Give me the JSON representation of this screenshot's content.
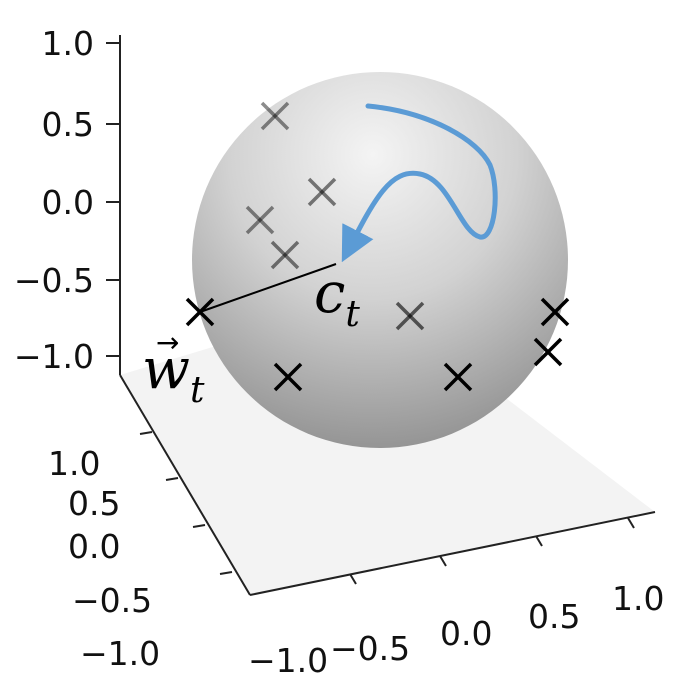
{
  "chart_data": {
    "type": "scatter",
    "projection": "3d",
    "title": "",
    "surface": "unit sphere (gray shaded)",
    "z_ticks": [
      "1.0",
      "0.5",
      "0.0",
      "−0.5",
      "−1.0"
    ],
    "y_ticks": [
      "1.0",
      "0.5",
      "0.0",
      "−0.5",
      "−1.0"
    ],
    "x_ticks": [
      "−1.0",
      "−0.5",
      "0.0",
      "0.5",
      "1.0"
    ],
    "xlim": [
      -1,
      1
    ],
    "ylim": [
      -1,
      1
    ],
    "zlim": [
      -1,
      1
    ],
    "markers": "x",
    "points_on_sphere": 12,
    "point_color": "#000000",
    "path_color": "#5b9bd5",
    "annotations": {
      "centroid_label": "c",
      "centroid_subscript": "t",
      "vector_label": "w",
      "vector_subscript": "t",
      "vector_arrow": "→"
    }
  },
  "colors": {
    "sphere_light": "#f2f2f2",
    "sphere_dark": "#8f8f8f",
    "floor": "#f3f3f3",
    "axis": "#222222",
    "path": "#5b9bd5"
  }
}
